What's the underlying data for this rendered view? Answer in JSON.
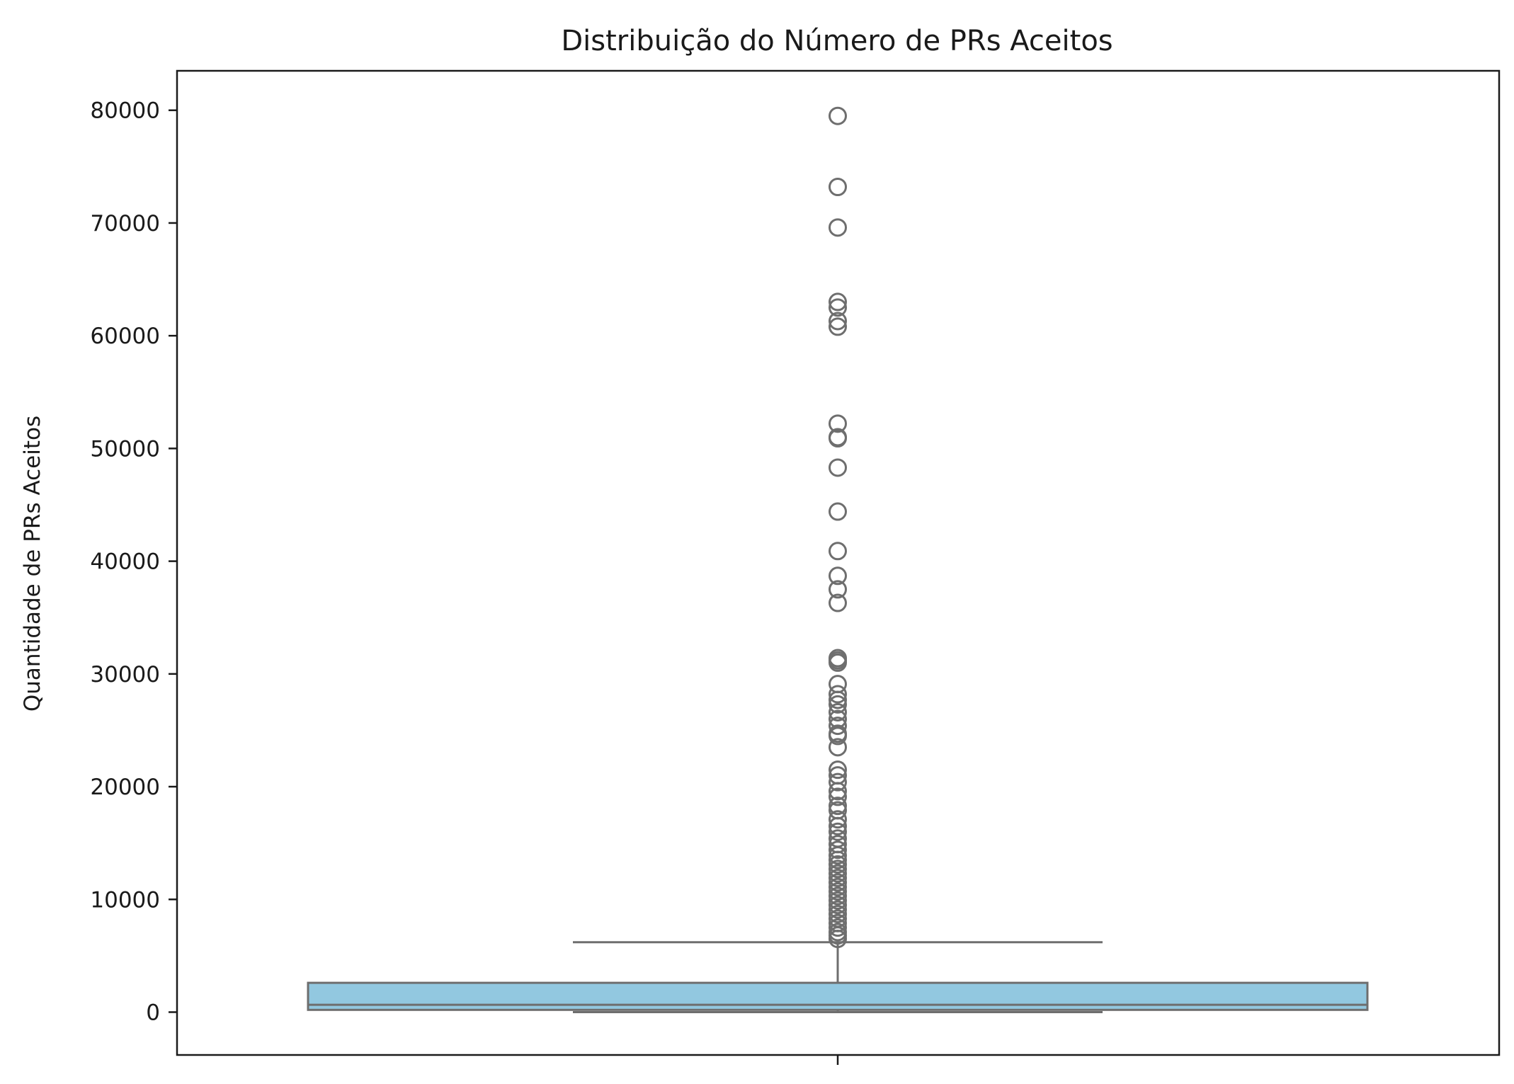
{
  "chart_data": {
    "type": "box",
    "title": "Distribuição do Número de PRs Aceitos",
    "xlabel": "",
    "ylabel": "Quantidade de PRs Aceitos",
    "ylim": [
      -3800,
      83500
    ],
    "yticks": [
      0,
      10000,
      20000,
      30000,
      40000,
      50000,
      60000,
      70000,
      80000
    ],
    "ytick_labels": [
      "0",
      "10000",
      "20000",
      "30000",
      "40000",
      "50000",
      "60000",
      "70000",
      "80000"
    ],
    "grid": false,
    "colors": {
      "box_fill": "#92c8e0",
      "line": "#6e6e6e",
      "axis": "#1a1a1a"
    },
    "box": {
      "whisker_low": 0,
      "q1": 200,
      "median": 650,
      "q3": 2600,
      "whisker_high": 6200
    },
    "outliers": [
      79500,
      73200,
      69600,
      63000,
      62500,
      61300,
      60800,
      52200,
      51000,
      50900,
      48300,
      44400,
      40900,
      38700,
      37500,
      36300,
      31400,
      31200,
      31000,
      29100,
      28200,
      27700,
      27300,
      26600,
      26000,
      25400,
      24700,
      24500,
      23500,
      21500,
      21000,
      20400,
      19600,
      19100,
      18300,
      17900,
      17100,
      16500,
      16000,
      15400,
      14900,
      14400,
      13900,
      13500,
      13100,
      12700,
      12300,
      11900,
      11500,
      11100,
      10700,
      10300,
      9900,
      9500,
      9100,
      8700,
      8300,
      7900,
      7500,
      7100,
      6800,
      6500
    ]
  }
}
